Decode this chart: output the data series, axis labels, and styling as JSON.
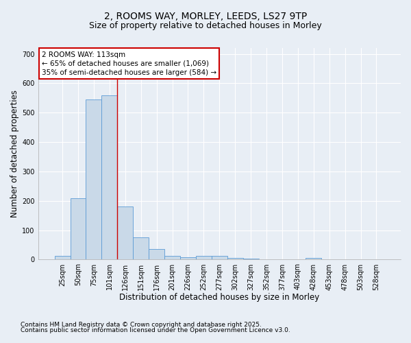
{
  "title_line1": "2, ROOMS WAY, MORLEY, LEEDS, LS27 9TP",
  "title_line2": "Size of property relative to detached houses in Morley",
  "xlabel": "Distribution of detached houses by size in Morley",
  "ylabel": "Number of detached properties",
  "categories": [
    "25sqm",
    "50sqm",
    "75sqm",
    "101sqm",
    "126sqm",
    "151sqm",
    "176sqm",
    "201sqm",
    "226sqm",
    "252sqm",
    "277sqm",
    "302sqm",
    "327sqm",
    "352sqm",
    "377sqm",
    "403sqm",
    "428sqm",
    "453sqm",
    "478sqm",
    "503sqm",
    "528sqm"
  ],
  "values": [
    12,
    210,
    545,
    560,
    180,
    75,
    35,
    13,
    8,
    13,
    12,
    5,
    3,
    0,
    0,
    0,
    5,
    0,
    0,
    0,
    0
  ],
  "bar_color": "#c9d9e8",
  "bar_edge_color": "#5b9bd5",
  "vline_x": 3.5,
  "annotation_line1": "2 ROOMS WAY: 113sqm",
  "annotation_line2": "← 65% of detached houses are smaller (1,069)",
  "annotation_line3": "35% of semi-detached houses are larger (584) →",
  "annotation_box_color": "#ffffff",
  "annotation_box_edge_color": "#cc0000",
  "ylim": [
    0,
    720
  ],
  "yticks": [
    0,
    100,
    200,
    300,
    400,
    500,
    600,
    700
  ],
  "footnote_line1": "Contains HM Land Registry data © Crown copyright and database right 2025.",
  "footnote_line2": "Contains public sector information licensed under the Open Government Licence v3.0.",
  "bg_color": "#e8eef5",
  "plot_bg_color": "#e8eef5",
  "grid_color": "#ffffff",
  "title_fontsize": 10,
  "subtitle_fontsize": 9,
  "axis_label_fontsize": 8.5,
  "tick_fontsize": 7,
  "annotation_fontsize": 7.5,
  "footnote_fontsize": 6.5
}
